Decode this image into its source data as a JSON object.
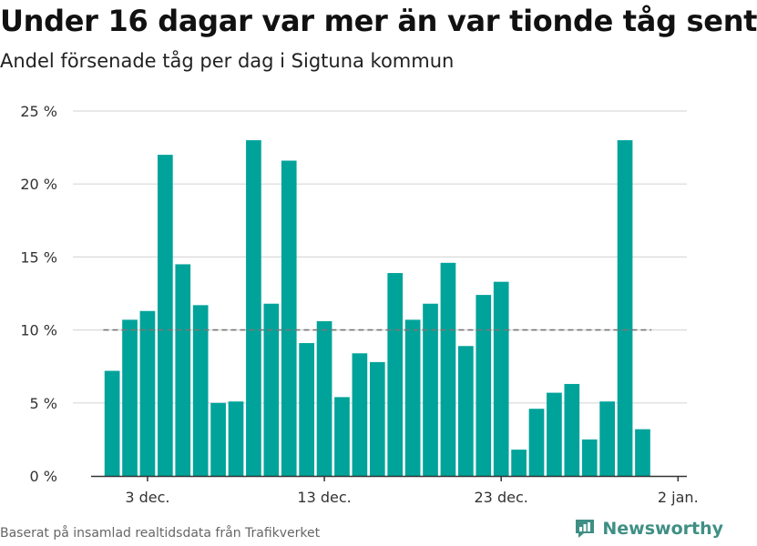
{
  "title": "Under 16 dagar var mer än var tionde tåg sent",
  "subtitle": "Andel försenade tåg per dag i Sigtuna kommun",
  "source": "Baserat på insamlad realtidsdata från Trafikverket",
  "brand": {
    "name": "Newsworthy",
    "icon": "newsworthy-logo-icon"
  },
  "colors": {
    "bar": "#00a39a",
    "grid": "#d9d9d9",
    "reference_line": "#777777",
    "axis": "#333333"
  },
  "chart_data": {
    "type": "bar",
    "x_axis": {
      "ticks": [
        {
          "day": 3,
          "label": "3 dec."
        },
        {
          "day": 13,
          "label": "13 dec."
        },
        {
          "day": 23,
          "label": "23 dec."
        },
        {
          "day": 33,
          "label": "2 jan."
        }
      ],
      "range": [
        -0.5,
        33.5
      ]
    },
    "y_axis": {
      "ticks": [
        {
          "value": 0,
          "label": "0 %"
        },
        {
          "value": 5,
          "label": "5 %"
        },
        {
          "value": 10,
          "label": "10 %"
        },
        {
          "value": 15,
          "label": "15 %"
        },
        {
          "value": 20,
          "label": "20 %"
        },
        {
          "value": 25,
          "label": "25 %"
        }
      ],
      "range": [
        0,
        25
      ]
    },
    "grid": true,
    "reference_line": {
      "value": 10,
      "style": "dashed"
    },
    "bars": [
      {
        "day": 1,
        "value": 7.2
      },
      {
        "day": 2,
        "value": 10.7
      },
      {
        "day": 3,
        "value": 11.3
      },
      {
        "day": 4,
        "value": 22.0
      },
      {
        "day": 5,
        "value": 14.5
      },
      {
        "day": 6,
        "value": 11.7
      },
      {
        "day": 7,
        "value": 5.0
      },
      {
        "day": 8,
        "value": 5.1
      },
      {
        "day": 9,
        "value": 23.0
      },
      {
        "day": 10,
        "value": 11.8
      },
      {
        "day": 11,
        "value": 21.6
      },
      {
        "day": 12,
        "value": 9.1
      },
      {
        "day": 13,
        "value": 10.6
      },
      {
        "day": 14,
        "value": 5.4
      },
      {
        "day": 15,
        "value": 8.4
      },
      {
        "day": 16,
        "value": 7.8
      },
      {
        "day": 17,
        "value": 13.9
      },
      {
        "day": 18,
        "value": 10.7
      },
      {
        "day": 19,
        "value": 11.8
      },
      {
        "day": 20,
        "value": 14.6
      },
      {
        "day": 21,
        "value": 8.9
      },
      {
        "day": 22,
        "value": 12.4
      },
      {
        "day": 23,
        "value": 13.3
      },
      {
        "day": 24,
        "value": 1.8
      },
      {
        "day": 25,
        "value": 4.6
      },
      {
        "day": 26,
        "value": 5.7
      },
      {
        "day": 27,
        "value": 6.3
      },
      {
        "day": 28,
        "value": 2.5
      },
      {
        "day": 29,
        "value": 5.1
      },
      {
        "day": 30,
        "value": 23.0
      },
      {
        "day": 31,
        "value": 3.2
      }
    ]
  }
}
